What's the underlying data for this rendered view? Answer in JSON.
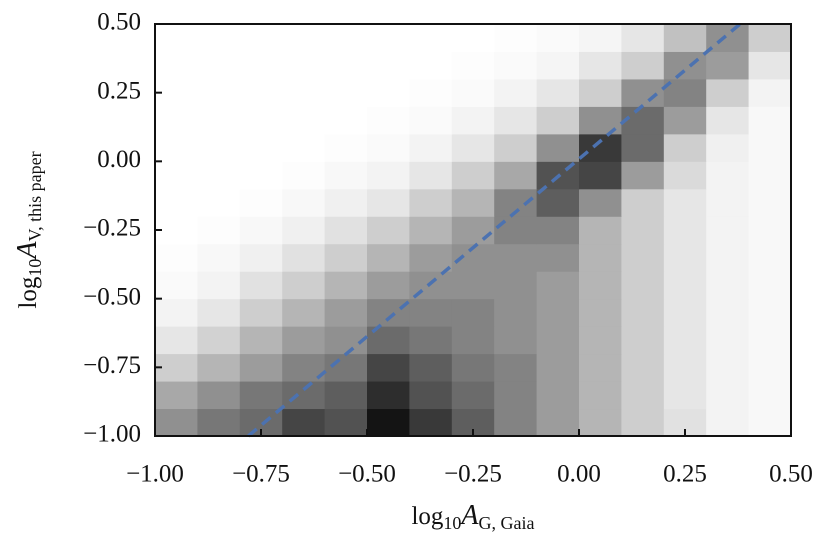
{
  "chart_data": {
    "type": "heatmap",
    "colormap": "Greys",
    "xbins": [
      -1.0,
      -0.9,
      -0.8,
      -0.7,
      -0.6,
      -0.5,
      -0.4,
      -0.3,
      -0.2,
      -0.1,
      0.0,
      0.1,
      0.2,
      0.3,
      0.4,
      0.5
    ],
    "ybins": [
      -1.0,
      -0.9,
      -0.8,
      -0.7,
      -0.6,
      -0.5,
      -0.4,
      -0.3,
      -0.2,
      -0.1,
      0.0,
      0.1,
      0.2,
      0.3,
      0.4,
      0.5
    ],
    "z": [
      [
        0.45,
        0.55,
        0.6,
        0.75,
        0.7,
        0.95,
        0.8,
        0.65,
        0.5,
        0.4,
        0.3,
        0.2,
        0.12,
        0.05,
        0.03
      ],
      [
        0.35,
        0.45,
        0.55,
        0.6,
        0.65,
        0.85,
        0.7,
        0.6,
        0.5,
        0.4,
        0.3,
        0.2,
        0.1,
        0.05,
        0.03
      ],
      [
        0.2,
        0.3,
        0.4,
        0.5,
        0.55,
        0.75,
        0.65,
        0.55,
        0.5,
        0.4,
        0.3,
        0.2,
        0.1,
        0.05,
        0.03
      ],
      [
        0.1,
        0.18,
        0.3,
        0.4,
        0.45,
        0.6,
        0.55,
        0.5,
        0.45,
        0.4,
        0.3,
        0.2,
        0.1,
        0.05,
        0.03
      ],
      [
        0.05,
        0.1,
        0.2,
        0.3,
        0.4,
        0.5,
        0.5,
        0.5,
        0.45,
        0.4,
        0.3,
        0.2,
        0.1,
        0.05,
        0.03
      ],
      [
        0.02,
        0.05,
        0.12,
        0.2,
        0.3,
        0.4,
        0.45,
        0.45,
        0.45,
        0.4,
        0.3,
        0.2,
        0.1,
        0.05,
        0.03
      ],
      [
        0.01,
        0.03,
        0.06,
        0.12,
        0.2,
        0.3,
        0.4,
        0.45,
        0.45,
        0.45,
        0.3,
        0.2,
        0.1,
        0.05,
        0.03
      ],
      [
        0,
        0.01,
        0.03,
        0.06,
        0.12,
        0.2,
        0.3,
        0.4,
        0.5,
        0.5,
        0.3,
        0.2,
        0.1,
        0.05,
        0.03
      ],
      [
        0,
        0,
        0.01,
        0.03,
        0.06,
        0.1,
        0.2,
        0.3,
        0.5,
        0.65,
        0.45,
        0.2,
        0.1,
        0.05,
        0.03
      ],
      [
        0,
        0,
        0,
        0.01,
        0.03,
        0.05,
        0.1,
        0.2,
        0.35,
        0.7,
        0.75,
        0.4,
        0.15,
        0.05,
        0.03
      ],
      [
        0,
        0,
        0,
        0,
        0.01,
        0.02,
        0.05,
        0.1,
        0.2,
        0.45,
        0.8,
        0.6,
        0.2,
        0.06,
        0.03
      ],
      [
        0,
        0,
        0,
        0,
        0,
        0.01,
        0.02,
        0.05,
        0.1,
        0.2,
        0.45,
        0.6,
        0.4,
        0.1,
        0.03
      ],
      [
        0,
        0,
        0,
        0,
        0,
        0,
        0.01,
        0.02,
        0.05,
        0.1,
        0.2,
        0.45,
        0.5,
        0.2,
        0.05
      ],
      [
        0,
        0,
        0,
        0,
        0,
        0,
        0,
        0.01,
        0.02,
        0.04,
        0.1,
        0.2,
        0.45,
        0.4,
        0.1
      ],
      [
        0,
        0,
        0,
        0,
        0,
        0,
        0,
        0,
        0.01,
        0.02,
        0.04,
        0.1,
        0.25,
        0.45,
        0.2
      ]
    ],
    "line": {
      "x": [
        -0.78,
        0.38
      ],
      "y": [
        -1.0,
        0.5
      ],
      "color": "#4c72b0",
      "dashed": true
    },
    "xlabel": {
      "base": "log",
      "base_sub": "10",
      "var": "A",
      "var_sub": "G, Gaia"
    },
    "ylabel": {
      "base": "log",
      "base_sub": "10",
      "var": "A",
      "var_sub": "V, this paper"
    },
    "xlim": [
      -1.0,
      0.5
    ],
    "ylim": [
      -1.0,
      0.5
    ],
    "xticks": [
      {
        "value": -1.0,
        "label": "−1.00"
      },
      {
        "value": -0.75,
        "label": "−0.75"
      },
      {
        "value": -0.5,
        "label": "−0.50"
      },
      {
        "value": -0.25,
        "label": "−0.25"
      },
      {
        "value": 0.0,
        "label": "0.00"
      },
      {
        "value": 0.25,
        "label": "0.25"
      },
      {
        "value": 0.5,
        "label": "0.50"
      }
    ],
    "yticks": [
      {
        "value": -1.0,
        "label": "−1.00"
      },
      {
        "value": -0.75,
        "label": "−0.75"
      },
      {
        "value": -0.5,
        "label": "−0.50"
      },
      {
        "value": -0.25,
        "label": "−0.25"
      },
      {
        "value": 0.0,
        "label": "0.00"
      },
      {
        "value": 0.25,
        "label": "0.25"
      },
      {
        "value": 0.5,
        "label": "0.50"
      }
    ]
  }
}
